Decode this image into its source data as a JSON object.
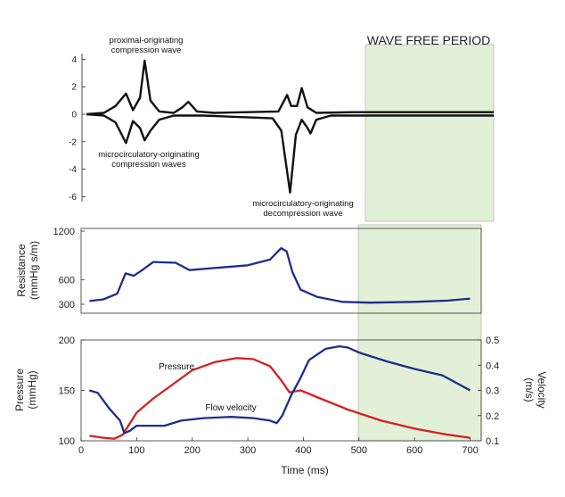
{
  "chart_data": [
    {
      "type": "line",
      "panel": "wave-intensity",
      "ylim": [
        -6,
        4
      ],
      "yticks": [
        "4",
        "2",
        "0",
        "-2",
        "-4",
        "-6"
      ],
      "shaded_region_label": "WAVE FREE PERIOD",
      "annotations": [
        "proximal-originating\ncompression wave",
        "microcirculatory-originating\ncompression waves",
        "microcirculatory-originating\ndecompression wave"
      ],
      "series": [
        {
          "color": "#111111",
          "points": [
            [
              0,
              0
            ],
            [
              30,
              0.1
            ],
            [
              50,
              0.6
            ],
            [
              68,
              1.5
            ],
            [
              80,
              0.3
            ],
            [
              92,
              1.2
            ],
            [
              100,
              3.9
            ],
            [
              110,
              1.0
            ],
            [
              125,
              0.2
            ],
            [
              150,
              0.1
            ],
            [
              165,
              0.5
            ],
            [
              175,
              0.9
            ],
            [
              190,
              0.2
            ],
            [
              220,
              0.1
            ],
            [
              330,
              0.2
            ],
            [
              345,
              1.4
            ],
            [
              352,
              0.6
            ],
            [
              362,
              0.6
            ],
            [
              370,
              1.9
            ],
            [
              380,
              0.5
            ],
            [
              395,
              0.1
            ],
            [
              460,
              0.15
            ],
            [
              700,
              0.15
            ]
          ]
        },
        {
          "color": "#111111",
          "points": [
            [
              0,
              0
            ],
            [
              30,
              -0.1
            ],
            [
              50,
              -0.6
            ],
            [
              68,
              -2.1
            ],
            [
              80,
              -0.5
            ],
            [
              92,
              -1.0
            ],
            [
              100,
              -1.9
            ],
            [
              110,
              -1.2
            ],
            [
              125,
              -0.4
            ],
            [
              150,
              -0.1
            ],
            [
              200,
              -0.1
            ],
            [
              320,
              -0.3
            ],
            [
              335,
              -1.2
            ],
            [
              350,
              -5.7
            ],
            [
              360,
              -1.5
            ],
            [
              370,
              -0.4
            ],
            [
              380,
              -1.0
            ],
            [
              385,
              -1.4
            ],
            [
              395,
              -0.4
            ],
            [
              420,
              -0.1
            ],
            [
              700,
              -0.1
            ]
          ]
        }
      ]
    },
    {
      "type": "line",
      "panel": "resistance",
      "ylabel": "Resistance\n(mmHg s/m)",
      "ylim": [
        160,
        1200
      ],
      "yticks": [
        300,
        600,
        1200
      ],
      "series": [
        {
          "color": "#1f2d8c",
          "points": [
            [
              15,
              340
            ],
            [
              40,
              360
            ],
            [
              65,
              430
            ],
            [
              80,
              680
            ],
            [
              95,
              650
            ],
            [
              110,
              720
            ],
            [
              130,
              820
            ],
            [
              170,
              810
            ],
            [
              195,
              720
            ],
            [
              230,
              740
            ],
            [
              300,
              780
            ],
            [
              340,
              850
            ],
            [
              360,
              990
            ],
            [
              370,
              950
            ],
            [
              380,
              700
            ],
            [
              395,
              480
            ],
            [
              425,
              390
            ],
            [
              470,
              330
            ],
            [
              520,
              320
            ],
            [
              600,
              330
            ],
            [
              660,
              345
            ],
            [
              700,
              370
            ]
          ]
        }
      ]
    },
    {
      "type": "line",
      "panel": "pressure-velocity",
      "xlabel": "Time (ms)",
      "xlim": [
        0,
        720
      ],
      "xticks": [
        0,
        100,
        200,
        300,
        400,
        500,
        600,
        700
      ],
      "ylabel_left": "Pressure\n(mmHg)",
      "ylim_left": [
        100,
        200
      ],
      "yticks_left": [
        100,
        150,
        200
      ],
      "ylabel_right": "Velocity\n(m/s)",
      "ylim_right": [
        0.1,
        0.5
      ],
      "yticks_right": [
        "0.1",
        "0.2",
        "0.3",
        "0.4",
        "0.5"
      ],
      "series": [
        {
          "name": "Pressure",
          "axis": "left",
          "color": "#d42020",
          "points": [
            [
              15,
              105
            ],
            [
              40,
              103
            ],
            [
              60,
              102
            ],
            [
              75,
              106
            ],
            [
              85,
              115
            ],
            [
              100,
              128
            ],
            [
              130,
              142
            ],
            [
              170,
              158
            ],
            [
              200,
              170
            ],
            [
              240,
              178
            ],
            [
              280,
              182
            ],
            [
              310,
              181
            ],
            [
              340,
              174
            ],
            [
              360,
              160
            ],
            [
              375,
              148
            ],
            [
              395,
              150
            ],
            [
              430,
              142
            ],
            [
              480,
              131
            ],
            [
              540,
              120
            ],
            [
              600,
              112
            ],
            [
              660,
              106
            ],
            [
              700,
              103
            ]
          ]
        },
        {
          "name": "Flow velocity",
          "axis": "right",
          "color": "#1f2d8c",
          "points": [
            [
              15,
              0.3
            ],
            [
              30,
              0.29
            ],
            [
              50,
              0.23
            ],
            [
              70,
              0.18
            ],
            [
              78,
              0.13
            ],
            [
              88,
              0.14
            ],
            [
              100,
              0.16
            ],
            [
              125,
              0.16
            ],
            [
              150,
              0.16
            ],
            [
              180,
              0.18
            ],
            [
              220,
              0.19
            ],
            [
              270,
              0.195
            ],
            [
              310,
              0.19
            ],
            [
              340,
              0.18
            ],
            [
              352,
              0.17
            ],
            [
              362,
              0.2
            ],
            [
              378,
              0.28
            ],
            [
              395,
              0.35
            ],
            [
              410,
              0.42
            ],
            [
              440,
              0.465
            ],
            [
              465,
              0.475
            ],
            [
              480,
              0.47
            ],
            [
              500,
              0.45
            ],
            [
              550,
              0.415
            ],
            [
              600,
              0.385
            ],
            [
              650,
              0.36
            ],
            [
              700,
              0.3
            ]
          ]
        }
      ]
    }
  ]
}
